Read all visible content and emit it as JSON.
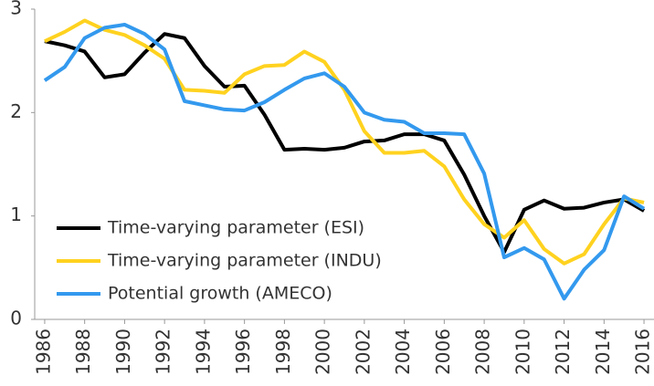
{
  "chart_data": {
    "type": "line",
    "x": [
      1986,
      1987,
      1988,
      1989,
      1990,
      1991,
      1992,
      1993,
      1994,
      1995,
      1996,
      1997,
      1998,
      1999,
      2000,
      2001,
      2002,
      2003,
      2004,
      2005,
      2006,
      2007,
      2008,
      2009,
      2010,
      2011,
      2012,
      2013,
      2014,
      2015,
      2016
    ],
    "xlim": [
      1985.5,
      2016.5
    ],
    "xticks": [
      1986,
      1988,
      1990,
      1992,
      1994,
      1996,
      1998,
      2000,
      2002,
      2004,
      2006,
      2008,
      2010,
      2012,
      2014,
      2016
    ],
    "ylim": [
      0,
      3
    ],
    "yticks": [
      0,
      1,
      2,
      3
    ],
    "grid": false,
    "legend": "lower left",
    "series": [
      {
        "name": "Time-varying parameter (ESI)",
        "color": "#000000",
        "values": [
          2.69,
          2.65,
          2.59,
          2.34,
          2.37,
          2.58,
          2.76,
          2.72,
          2.45,
          2.25,
          2.26,
          1.98,
          1.64,
          1.65,
          1.64,
          1.66,
          1.72,
          1.73,
          1.79,
          1.79,
          1.73,
          1.4,
          1.0,
          0.65,
          1.06,
          1.15,
          1.07,
          1.08,
          1.13,
          1.16,
          1.05
        ]
      },
      {
        "name": "Time-varying parameter (INDU)",
        "color": "#ffd21f",
        "values": [
          2.69,
          2.78,
          2.89,
          2.8,
          2.75,
          2.65,
          2.52,
          2.22,
          2.21,
          2.19,
          2.37,
          2.45,
          2.46,
          2.59,
          2.49,
          2.22,
          1.82,
          1.61,
          1.61,
          1.63,
          1.48,
          1.16,
          0.92,
          0.79,
          0.96,
          0.68,
          0.54,
          0.63,
          0.92,
          1.17,
          1.13
        ]
      },
      {
        "name": "Potential growth (AMECO)",
        "color": "#3399ee",
        "values": [
          2.31,
          2.44,
          2.72,
          2.82,
          2.85,
          2.76,
          2.61,
          2.11,
          2.07,
          2.03,
          2.02,
          2.1,
          2.22,
          2.33,
          2.38,
          2.25,
          2.0,
          1.93,
          1.91,
          1.8,
          1.8,
          1.79,
          1.41,
          0.6,
          0.69,
          0.58,
          0.2,
          0.48,
          0.67,
          1.19,
          1.07
        ]
      }
    ]
  }
}
